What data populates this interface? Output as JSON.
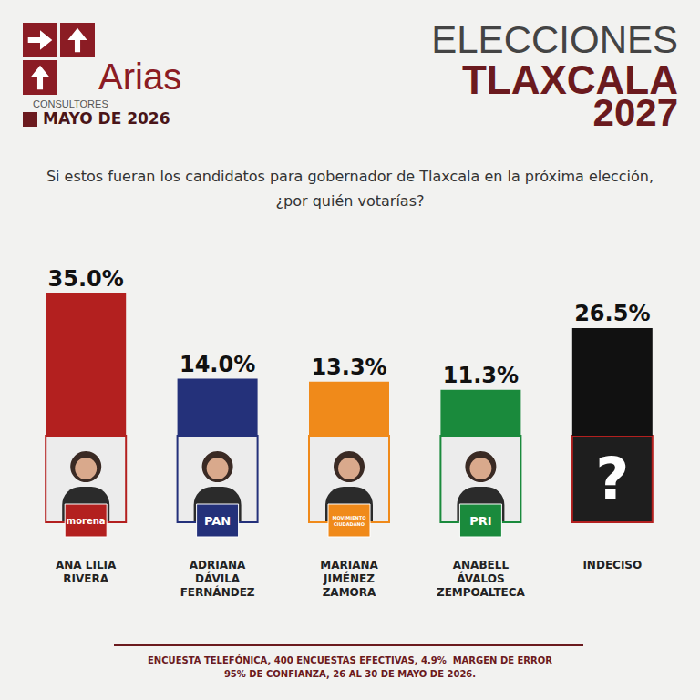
{
  "chart_data": {
    "type": "bar",
    "title": "ELECCIONES\nTLAXCALA\n2027",
    "subtitle": "Si estos fueran los candidatos para gobernador de Tlaxcala en la próxima elección,\n¿por quién votarías?",
    "categories": [
      "ANA LILIA\nRIVERA",
      "ADRIANA\nDÁVILA\nFERNÁNDEZ",
      "MARIANA\nJIMÉNEZ\nZAMORA",
      "ANABELL\nÁVALOS\nZEMPOALTECA",
      "INDECISO"
    ],
    "values": [
      35.0,
      14.0,
      13.3,
      11.3,
      26.5
    ],
    "value_labels": [
      "35.0%",
      "14.0%",
      "13.3%",
      "11.3%",
      "26.5%"
    ],
    "colors": [
      "#b3201f",
      "#24317a",
      "#f08a1a",
      "#1a8a3c",
      "#111111"
    ],
    "parties": [
      "morena",
      "PAN",
      "MOVIMIENTO\nCIUDADANO",
      "PRI",
      null
    ],
    "icons": [
      null,
      null,
      null,
      null,
      "?"
    ],
    "annotations": {
      "brand": "Arias",
      "brand_sub": "CONSULTORES",
      "date": "MAYO DE 2026",
      "footer": "ENCUESTA TELEFÓNICA, 400 ENCUESTAS EFECTIVAS, 4.9%  MARGEN DE ERROR\n95% DE CONFIANZA, 26 AL 30 DE MAYO DE 2026."
    },
    "ylim": [
      0,
      35
    ],
    "yticks": [
      0,
      35
    ],
    "grid": false,
    "data_labels": true,
    "tick_labels": false
  }
}
